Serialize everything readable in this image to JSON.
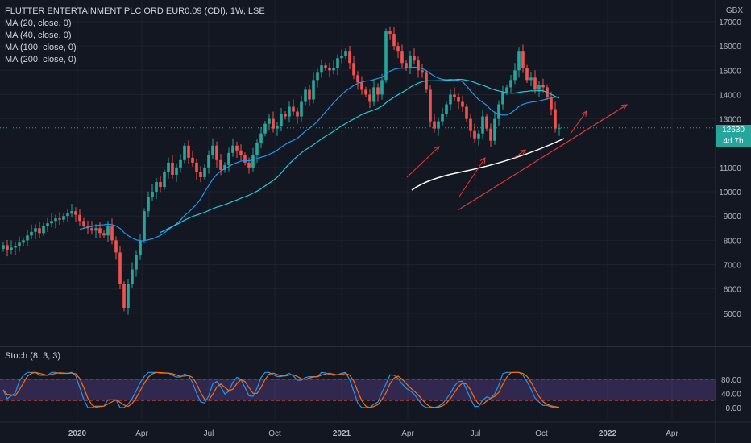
{
  "legend": {
    "title": "FLUTTER ENTERTAINMENT PLC ORD EUR0.09 (CDI), 1W, LSE",
    "ma1": "MA (20, close, 0)",
    "ma2": "MA (40, close, 0)",
    "ma3": "MA (100, close, 0)",
    "ma4": "MA (200, close, 0)"
  },
  "stoch_label": "Stoch (8, 3, 3)",
  "currency": "GBX",
  "last_price": "12630",
  "countdown": "4d 7h",
  "colors": {
    "background": "#131722",
    "up": "#26a69a",
    "down": "#ef5350",
    "ma20": "#2196f3",
    "ma40": "#26c6da",
    "ma200": "#ffffff",
    "stoch_k": "#2196f3",
    "stoch_d": "#ff6d00",
    "stoch_band": "#7e57c2",
    "annotation": "#e53935"
  },
  "chart_data": [
    {
      "type": "candlestick",
      "title": "FLUTTER ENTERTAINMENT PLC ORD EUR0.09 (CDI), 1W, LSE",
      "ylabel": "GBX",
      "ylim": [
        4500,
        17300
      ],
      "y_ticks": [
        "17000",
        "16000",
        "15000",
        "14000",
        "13000",
        "11000",
        "10000",
        "9000",
        "8000",
        "7000",
        "6000",
        "5000"
      ],
      "x_ticks": [
        "2020",
        "Apr",
        "Jul",
        "Oct",
        "2021",
        "Apr",
        "Jul",
        "Oct",
        "2022",
        "Apr"
      ],
      "series_close": [
        7800,
        7600,
        7700,
        7750,
        7900,
        8000,
        8200,
        8350,
        8500,
        8300,
        8600,
        8700,
        8800,
        8900,
        8850,
        9000,
        9100,
        9200,
        9050,
        8800,
        8600,
        8500,
        8400,
        8500,
        8300,
        8200,
        8600,
        8000,
        7500,
        6200,
        5200,
        6200,
        6800,
        7400,
        8000,
        9200,
        9800,
        10000,
        10400,
        10200,
        10800,
        11200,
        10700,
        11000,
        11300,
        11900,
        11400,
        11200,
        10800,
        10600,
        11000,
        11500,
        11900,
        11300,
        10900,
        11100,
        11600,
        11900,
        11700,
        11500,
        11200,
        11000,
        11500,
        12000,
        12400,
        12800,
        13000,
        12600,
        12700,
        13200,
        13100,
        13500,
        13300,
        13100,
        13700,
        14200,
        13800,
        14600,
        14900,
        15200,
        15100,
        15000,
        15100,
        15500,
        15600,
        15800,
        15300,
        14800,
        14500,
        14200,
        14000,
        13700,
        14300,
        14000,
        14600,
        16600,
        16500,
        16000,
        15800,
        15300,
        15100,
        15600,
        15400,
        15000,
        14900,
        14200,
        12900,
        12600,
        12900,
        13200,
        13600,
        14000,
        13900,
        13700,
        13500,
        13000,
        12500,
        12200,
        12400,
        13100,
        12600,
        12100,
        13000,
        13600,
        14100,
        14300,
        14600,
        15000,
        15800,
        15100,
        14600,
        14700,
        14200,
        14400,
        14300,
        13900,
        13400,
        12600,
        12630
      ],
      "series": [
        {
          "name": "MA (20, close, 0)"
        },
        {
          "name": "MA (40, close, 0)"
        },
        {
          "name": "MA (100, close, 0)"
        },
        {
          "name": "MA (200, close, 0)"
        }
      ],
      "last_price": 12630
    },
    {
      "type": "line",
      "title": "Stoch (8, 3, 3)",
      "y_ticks": [
        "80.00",
        "40.00",
        "0.00"
      ],
      "ylim": [
        0,
        100
      ],
      "band": [
        20,
        80
      ]
    }
  ]
}
